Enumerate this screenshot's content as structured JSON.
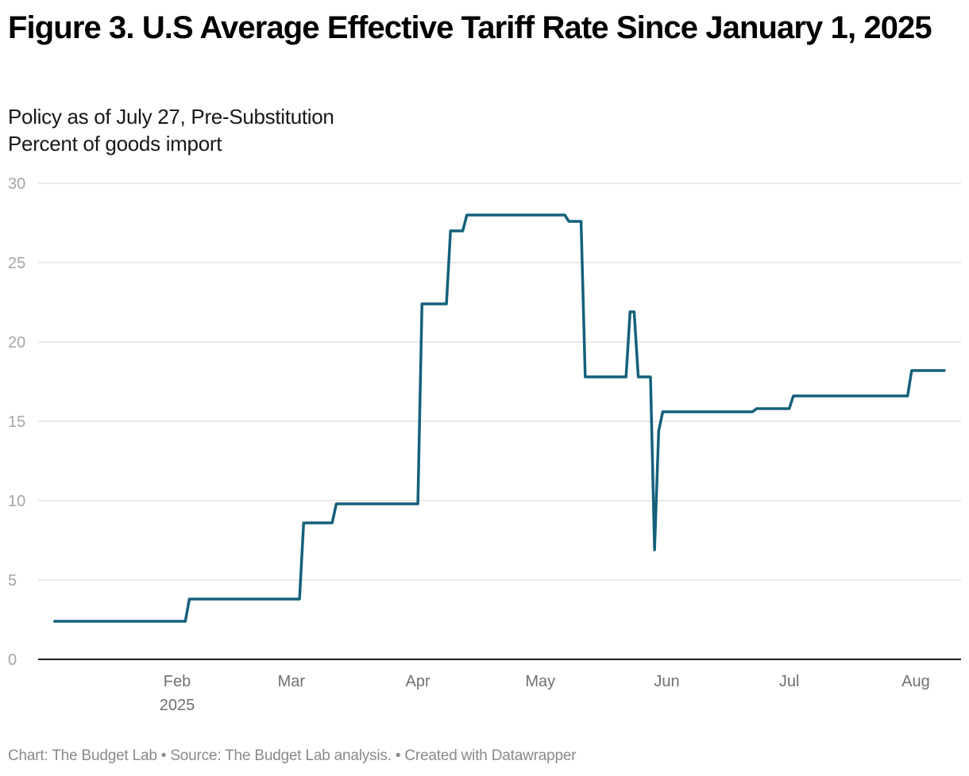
{
  "header": {
    "title": "Figure 3. U.S Average Effective Tariff Rate Since January 1, 2025",
    "subtitle_line1": "Policy as of July 27, Pre-Substitution",
    "subtitle_line2": "Percent of goods import"
  },
  "footer": {
    "chart_credit": "Chart: The Budget Lab",
    "source": "Source: The Budget Lab analysis.",
    "created_with": "Created with Datawrapper",
    "separator": " • "
  },
  "colors": {
    "line": "#15607a",
    "gridline": "#e3e3e3",
    "baseline": "#1a1a1a"
  },
  "chart_data": {
    "type": "line",
    "title": "Figure 3. U.S Average Effective Tariff Rate Since January 1, 2025",
    "subtitle": "Policy as of July 27, Pre-Substitution",
    "ylabel": "Percent of goods import",
    "xlabel": "",
    "ylim": [
      0,
      30
    ],
    "xlim": [
      "2025-01-01",
      "2025-08-12"
    ],
    "grid": true,
    "legend": "none",
    "yticks": [
      0,
      5,
      10,
      15,
      20,
      25,
      30
    ],
    "xticks": [
      {
        "date": "2025-02-01",
        "label": "Feb",
        "sublabel": "2025"
      },
      {
        "date": "2025-03-01",
        "label": "Mar",
        "sublabel": ""
      },
      {
        "date": "2025-04-01",
        "label": "Apr",
        "sublabel": ""
      },
      {
        "date": "2025-05-01",
        "label": "May",
        "sublabel": ""
      },
      {
        "date": "2025-06-01",
        "label": "Jun",
        "sublabel": ""
      },
      {
        "date": "2025-07-01",
        "label": "Jul",
        "sublabel": ""
      },
      {
        "date": "2025-08-01",
        "label": "Aug",
        "sublabel": ""
      }
    ],
    "series": [
      {
        "name": "Average effective tariff rate",
        "points": [
          {
            "x": "2025-01-02",
            "y": 2.4
          },
          {
            "x": "2025-02-03",
            "y": 2.4
          },
          {
            "x": "2025-02-04",
            "y": 3.8
          },
          {
            "x": "2025-03-03",
            "y": 3.8
          },
          {
            "x": "2025-03-04",
            "y": 8.6
          },
          {
            "x": "2025-03-11",
            "y": 8.6
          },
          {
            "x": "2025-03-12",
            "y": 9.8
          },
          {
            "x": "2025-04-01",
            "y": 9.8
          },
          {
            "x": "2025-04-02",
            "y": 22.4
          },
          {
            "x": "2025-04-08",
            "y": 22.4
          },
          {
            "x": "2025-04-09",
            "y": 27.0
          },
          {
            "x": "2025-04-12",
            "y": 27.0
          },
          {
            "x": "2025-04-13",
            "y": 28.0
          },
          {
            "x": "2025-05-07",
            "y": 28.0
          },
          {
            "x": "2025-05-08",
            "y": 27.6
          },
          {
            "x": "2025-05-11",
            "y": 27.6
          },
          {
            "x": "2025-05-12",
            "y": 17.8
          },
          {
            "x": "2025-05-22",
            "y": 17.8
          },
          {
            "x": "2025-05-23",
            "y": 21.9
          },
          {
            "x": "2025-05-24",
            "y": 21.9
          },
          {
            "x": "2025-05-25",
            "y": 17.8
          },
          {
            "x": "2025-05-28",
            "y": 17.8
          },
          {
            "x": "2025-05-29",
            "y": 6.9
          },
          {
            "x": "2025-05-30",
            "y": 14.4
          },
          {
            "x": "2025-05-31",
            "y": 15.6
          },
          {
            "x": "2025-06-22",
            "y": 15.6
          },
          {
            "x": "2025-06-23",
            "y": 15.8
          },
          {
            "x": "2025-07-01",
            "y": 15.8
          },
          {
            "x": "2025-07-02",
            "y": 16.6
          },
          {
            "x": "2025-07-30",
            "y": 16.6
          },
          {
            "x": "2025-07-31",
            "y": 18.2
          },
          {
            "x": "2025-08-08",
            "y": 18.2
          }
        ]
      }
    ]
  }
}
